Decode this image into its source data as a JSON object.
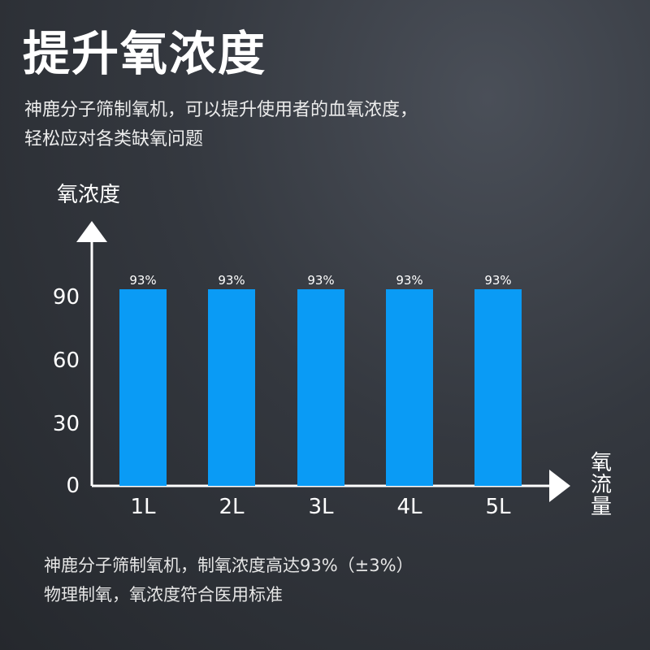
{
  "header": {
    "title": "提升氧浓度",
    "subtitle_line1": "神鹿分子筛制氧机，可以提升使用者的血氧浓度，",
    "subtitle_line2": "轻松应对各类缺氧问题"
  },
  "chart_data": {
    "type": "bar",
    "ylabel": "氧浓度",
    "xlabel": "氧流量",
    "categories": [
      "1L",
      "2L",
      "3L",
      "4L",
      "5L"
    ],
    "values": [
      93,
      93,
      93,
      93,
      93
    ],
    "data_labels": [
      "93%",
      "93%",
      "93%",
      "93%",
      "93%"
    ],
    "yticks": [
      0,
      30,
      60,
      90
    ],
    "ylim": [
      0,
      93
    ],
    "grid": false,
    "bar_color": "#0a9bf5",
    "axis_color": "#ffffff"
  },
  "footer": {
    "line1": "神鹿分子筛制氧机，制氧浓度高达93%（±3%）",
    "line2": "物理制氧，氧浓度符合医用标准"
  }
}
